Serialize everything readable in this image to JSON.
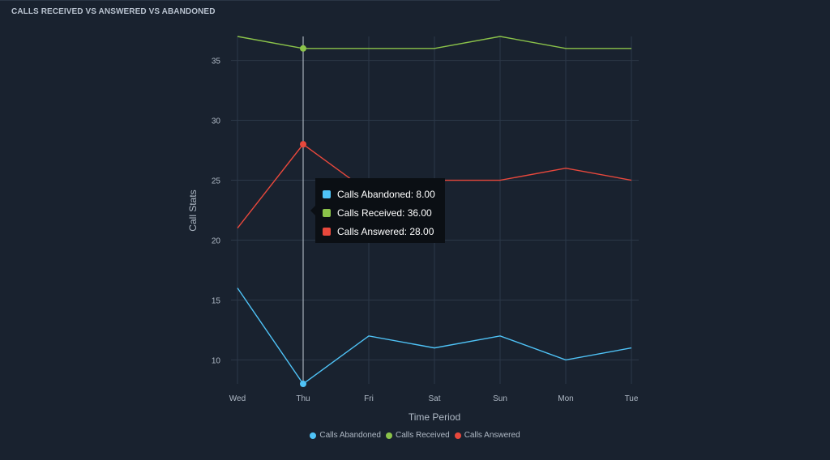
{
  "panel": {
    "title": "CALLS RECEIVED VS ANSWERED VS ABANDONED"
  },
  "chart_data": {
    "type": "line",
    "title": "CALLS RECEIVED VS ANSWERED VS ABANDONED",
    "xlabel": "Time Period",
    "ylabel": "Call Stats",
    "categories": [
      "Wed",
      "Thu",
      "Fri",
      "Sat",
      "Sun",
      "Mon",
      "Tue"
    ],
    "ylim": [
      8,
      37
    ],
    "yticks": [
      10,
      15,
      20,
      25,
      30,
      35
    ],
    "grid": true,
    "legend_position": "bottom",
    "series": [
      {
        "name": "Calls Abandoned",
        "color": "#4fc3f7",
        "values": [
          16,
          8,
          12,
          11,
          12,
          10,
          11
        ]
      },
      {
        "name": "Calls Received",
        "color": "#8bc34a",
        "values": [
          37,
          36,
          36,
          36,
          37,
          36,
          36
        ]
      },
      {
        "name": "Calls Answered",
        "color": "#e8483c",
        "values": [
          21,
          28,
          24,
          25,
          25,
          26,
          25
        ]
      }
    ],
    "hover_index": 1
  },
  "tooltip": {
    "rows": [
      {
        "label": "Calls Abandoned: 8.00",
        "color": "#4fc3f7"
      },
      {
        "label": "Calls Received: 36.00",
        "color": "#8bc34a"
      },
      {
        "label": "Calls Answered: 28.00",
        "color": "#e8483c"
      }
    ]
  },
  "legend": {
    "items": [
      {
        "label": "Calls Abandoned",
        "color": "#4fc3f7"
      },
      {
        "label": "Calls Received",
        "color": "#8bc34a"
      },
      {
        "label": "Calls Answered",
        "color": "#e8483c"
      }
    ]
  }
}
